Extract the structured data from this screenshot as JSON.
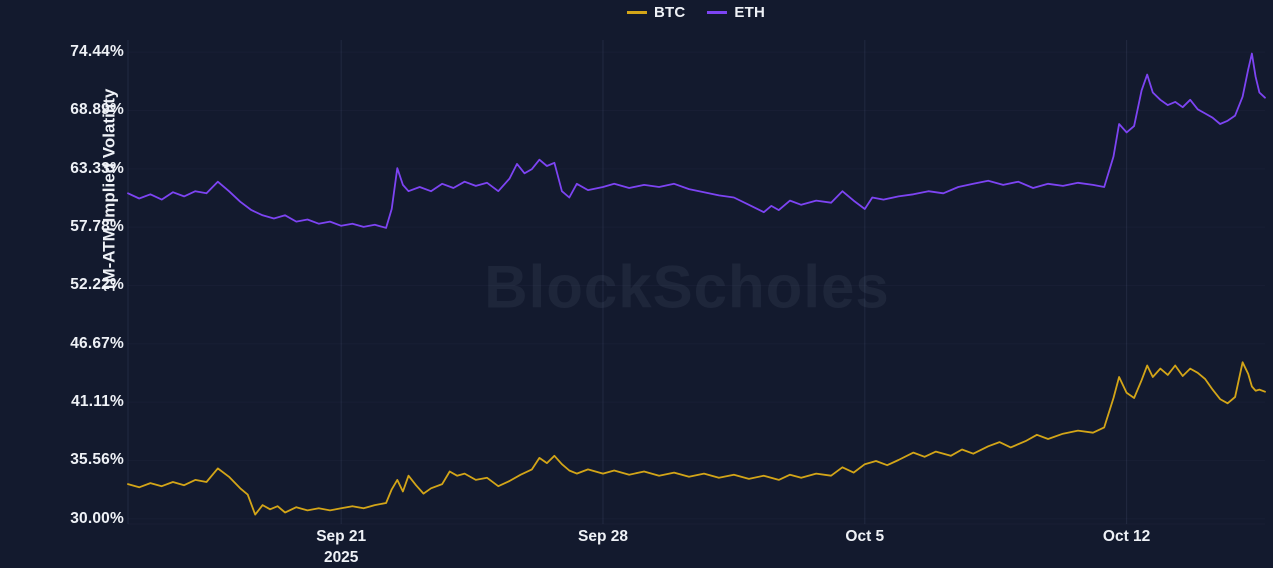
{
  "watermark": "BlockScholes",
  "colors": {
    "background": "#131a2e",
    "grid": "rgba(130,150,195,0.13)",
    "grid_faint": "rgba(130,150,195,0.045)",
    "text": "#eef1f6",
    "btc": "#d3a518",
    "eth": "#7d44f3"
  },
  "legend": {
    "items": [
      {
        "label": "BTC",
        "color": "#d3a518"
      },
      {
        "label": "ETH",
        "color": "#7d44f3"
      }
    ]
  },
  "y_axis": {
    "label": "1M-ATM Implied Volatility",
    "tick_labels": [
      "74.44%",
      "68.89%",
      "63.33%",
      "57.78%",
      "52.22%",
      "46.67%",
      "41.11%",
      "35.56%",
      "30.00%"
    ]
  },
  "x_axis": {
    "tick_labels": [
      "Sep 21",
      "Sep 28",
      "Oct 5",
      "Oct 12"
    ],
    "year_label": "2025"
  },
  "chart_data": {
    "type": "line",
    "title": "",
    "xlabel": "",
    "ylabel": "1M-ATM Implied Volatility",
    "x_unit": "days (span approx Sep 15 - Oct 15, 2025)",
    "xlim": [
      0,
      30.4
    ],
    "ylim": [
      29.5,
      75.6
    ],
    "grid": "vertical-weekly",
    "legend_position": "top-center",
    "y_ticks": [
      74.44,
      68.89,
      63.33,
      57.78,
      52.22,
      46.67,
      41.11,
      35.56,
      30.0
    ],
    "x_ticks": [
      {
        "label": "Sep 21",
        "year": "2025",
        "x": 5.7
      },
      {
        "label": "Sep 28",
        "x": 12.7
      },
      {
        "label": "Oct 5",
        "x": 19.7
      },
      {
        "label": "Oct 12",
        "x": 26.7
      }
    ],
    "series": [
      {
        "name": "ETH",
        "color": "#7d44f3",
        "points": [
          [
            0,
            61.0
          ],
          [
            0.3,
            60.5
          ],
          [
            0.6,
            60.9
          ],
          [
            0.9,
            60.4
          ],
          [
            1.2,
            61.1
          ],
          [
            1.5,
            60.7
          ],
          [
            1.8,
            61.2
          ],
          [
            2.1,
            61.0
          ],
          [
            2.4,
            62.1
          ],
          [
            2.7,
            61.2
          ],
          [
            3.0,
            60.2
          ],
          [
            3.3,
            59.4
          ],
          [
            3.6,
            58.9
          ],
          [
            3.9,
            58.6
          ],
          [
            4.2,
            58.9
          ],
          [
            4.5,
            58.3
          ],
          [
            4.8,
            58.5
          ],
          [
            5.1,
            58.1
          ],
          [
            5.4,
            58.3
          ],
          [
            5.7,
            57.9
          ],
          [
            6.0,
            58.1
          ],
          [
            6.3,
            57.8
          ],
          [
            6.6,
            58.0
          ],
          [
            6.9,
            57.7
          ],
          [
            7.05,
            59.5
          ],
          [
            7.2,
            63.4
          ],
          [
            7.35,
            61.8
          ],
          [
            7.5,
            61.2
          ],
          [
            7.8,
            61.6
          ],
          [
            8.1,
            61.2
          ],
          [
            8.4,
            61.9
          ],
          [
            8.7,
            61.5
          ],
          [
            9.0,
            62.1
          ],
          [
            9.3,
            61.7
          ],
          [
            9.6,
            62.0
          ],
          [
            9.9,
            61.2
          ],
          [
            10.2,
            62.4
          ],
          [
            10.4,
            63.8
          ],
          [
            10.6,
            62.9
          ],
          [
            10.8,
            63.3
          ],
          [
            11.0,
            64.2
          ],
          [
            11.2,
            63.6
          ],
          [
            11.4,
            63.9
          ],
          [
            11.6,
            61.2
          ],
          [
            11.8,
            60.6
          ],
          [
            12.0,
            61.9
          ],
          [
            12.3,
            61.3
          ],
          [
            12.7,
            61.6
          ],
          [
            13.0,
            61.9
          ],
          [
            13.4,
            61.5
          ],
          [
            13.8,
            61.8
          ],
          [
            14.2,
            61.6
          ],
          [
            14.6,
            61.9
          ],
          [
            15.0,
            61.4
          ],
          [
            15.4,
            61.1
          ],
          [
            15.8,
            60.8
          ],
          [
            16.2,
            60.6
          ],
          [
            16.6,
            59.9
          ],
          [
            17.0,
            59.2
          ],
          [
            17.2,
            59.8
          ],
          [
            17.4,
            59.4
          ],
          [
            17.7,
            60.3
          ],
          [
            18.0,
            59.9
          ],
          [
            18.4,
            60.3
          ],
          [
            18.8,
            60.1
          ],
          [
            19.1,
            61.2
          ],
          [
            19.4,
            60.3
          ],
          [
            19.7,
            59.5
          ],
          [
            19.9,
            60.6
          ],
          [
            20.2,
            60.4
          ],
          [
            20.6,
            60.7
          ],
          [
            21.0,
            60.9
          ],
          [
            21.4,
            61.2
          ],
          [
            21.8,
            61.0
          ],
          [
            22.2,
            61.6
          ],
          [
            22.6,
            61.9
          ],
          [
            23.0,
            62.2
          ],
          [
            23.4,
            61.8
          ],
          [
            23.8,
            62.1
          ],
          [
            24.2,
            61.5
          ],
          [
            24.6,
            61.9
          ],
          [
            25.0,
            61.7
          ],
          [
            25.4,
            62.0
          ],
          [
            25.8,
            61.8
          ],
          [
            26.1,
            61.6
          ],
          [
            26.35,
            64.5
          ],
          [
            26.5,
            67.6
          ],
          [
            26.7,
            66.8
          ],
          [
            26.9,
            67.4
          ],
          [
            27.1,
            70.8
          ],
          [
            27.25,
            72.3
          ],
          [
            27.4,
            70.6
          ],
          [
            27.6,
            69.9
          ],
          [
            27.8,
            69.4
          ],
          [
            28.0,
            69.7
          ],
          [
            28.2,
            69.2
          ],
          [
            28.4,
            69.9
          ],
          [
            28.6,
            69.0
          ],
          [
            28.8,
            68.6
          ],
          [
            29.0,
            68.2
          ],
          [
            29.2,
            67.6
          ],
          [
            29.4,
            67.9
          ],
          [
            29.6,
            68.4
          ],
          [
            29.8,
            70.2
          ],
          [
            29.95,
            72.8
          ],
          [
            30.05,
            74.3
          ],
          [
            30.15,
            72.1
          ],
          [
            30.25,
            70.6
          ],
          [
            30.4,
            70.1
          ]
        ]
      },
      {
        "name": "BTC",
        "color": "#d3a518",
        "points": [
          [
            0,
            33.3
          ],
          [
            0.3,
            33.0
          ],
          [
            0.6,
            33.4
          ],
          [
            0.9,
            33.1
          ],
          [
            1.2,
            33.5
          ],
          [
            1.5,
            33.2
          ],
          [
            1.8,
            33.7
          ],
          [
            2.1,
            33.5
          ],
          [
            2.4,
            34.8
          ],
          [
            2.7,
            34.0
          ],
          [
            3.0,
            32.9
          ],
          [
            3.2,
            32.3
          ],
          [
            3.4,
            30.4
          ],
          [
            3.6,
            31.3
          ],
          [
            3.8,
            30.9
          ],
          [
            4.0,
            31.2
          ],
          [
            4.2,
            30.6
          ],
          [
            4.5,
            31.1
          ],
          [
            4.8,
            30.8
          ],
          [
            5.1,
            31.0
          ],
          [
            5.4,
            30.8
          ],
          [
            5.7,
            31.0
          ],
          [
            6.0,
            31.2
          ],
          [
            6.3,
            31.0
          ],
          [
            6.6,
            31.3
          ],
          [
            6.9,
            31.5
          ],
          [
            7.05,
            32.8
          ],
          [
            7.2,
            33.7
          ],
          [
            7.35,
            32.6
          ],
          [
            7.5,
            34.1
          ],
          [
            7.7,
            33.2
          ],
          [
            7.9,
            32.4
          ],
          [
            8.1,
            32.9
          ],
          [
            8.4,
            33.3
          ],
          [
            8.6,
            34.5
          ],
          [
            8.8,
            34.1
          ],
          [
            9.0,
            34.3
          ],
          [
            9.3,
            33.7
          ],
          [
            9.6,
            33.9
          ],
          [
            9.9,
            33.1
          ],
          [
            10.2,
            33.6
          ],
          [
            10.5,
            34.2
          ],
          [
            10.8,
            34.7
          ],
          [
            11.0,
            35.8
          ],
          [
            11.2,
            35.3
          ],
          [
            11.4,
            36.0
          ],
          [
            11.6,
            35.2
          ],
          [
            11.8,
            34.6
          ],
          [
            12.0,
            34.3
          ],
          [
            12.3,
            34.7
          ],
          [
            12.7,
            34.3
          ],
          [
            13.0,
            34.6
          ],
          [
            13.4,
            34.2
          ],
          [
            13.8,
            34.5
          ],
          [
            14.2,
            34.1
          ],
          [
            14.6,
            34.4
          ],
          [
            15.0,
            34.0
          ],
          [
            15.4,
            34.3
          ],
          [
            15.8,
            33.9
          ],
          [
            16.2,
            34.2
          ],
          [
            16.6,
            33.8
          ],
          [
            17.0,
            34.1
          ],
          [
            17.4,
            33.7
          ],
          [
            17.7,
            34.2
          ],
          [
            18.0,
            33.9
          ],
          [
            18.4,
            34.3
          ],
          [
            18.8,
            34.1
          ],
          [
            19.1,
            34.9
          ],
          [
            19.4,
            34.4
          ],
          [
            19.7,
            35.2
          ],
          [
            20.0,
            35.5
          ],
          [
            20.3,
            35.1
          ],
          [
            20.6,
            35.6
          ],
          [
            21.0,
            36.3
          ],
          [
            21.3,
            35.9
          ],
          [
            21.6,
            36.4
          ],
          [
            22.0,
            36.0
          ],
          [
            22.3,
            36.6
          ],
          [
            22.6,
            36.2
          ],
          [
            23.0,
            36.9
          ],
          [
            23.3,
            37.3
          ],
          [
            23.6,
            36.8
          ],
          [
            24.0,
            37.4
          ],
          [
            24.3,
            38.0
          ],
          [
            24.6,
            37.6
          ],
          [
            25.0,
            38.1
          ],
          [
            25.4,
            38.4
          ],
          [
            25.8,
            38.2
          ],
          [
            26.1,
            38.7
          ],
          [
            26.35,
            41.5
          ],
          [
            26.5,
            43.5
          ],
          [
            26.7,
            42.0
          ],
          [
            26.9,
            41.5
          ],
          [
            27.1,
            43.2
          ],
          [
            27.25,
            44.6
          ],
          [
            27.4,
            43.5
          ],
          [
            27.6,
            44.3
          ],
          [
            27.8,
            43.7
          ],
          [
            28.0,
            44.6
          ],
          [
            28.2,
            43.6
          ],
          [
            28.4,
            44.3
          ],
          [
            28.6,
            43.9
          ],
          [
            28.8,
            43.3
          ],
          [
            29.0,
            42.3
          ],
          [
            29.2,
            41.4
          ],
          [
            29.4,
            41.0
          ],
          [
            29.6,
            41.6
          ],
          [
            29.8,
            44.9
          ],
          [
            29.95,
            43.8
          ],
          [
            30.05,
            42.6
          ],
          [
            30.15,
            42.2
          ],
          [
            30.25,
            42.3
          ],
          [
            30.4,
            42.1
          ]
        ]
      }
    ]
  }
}
